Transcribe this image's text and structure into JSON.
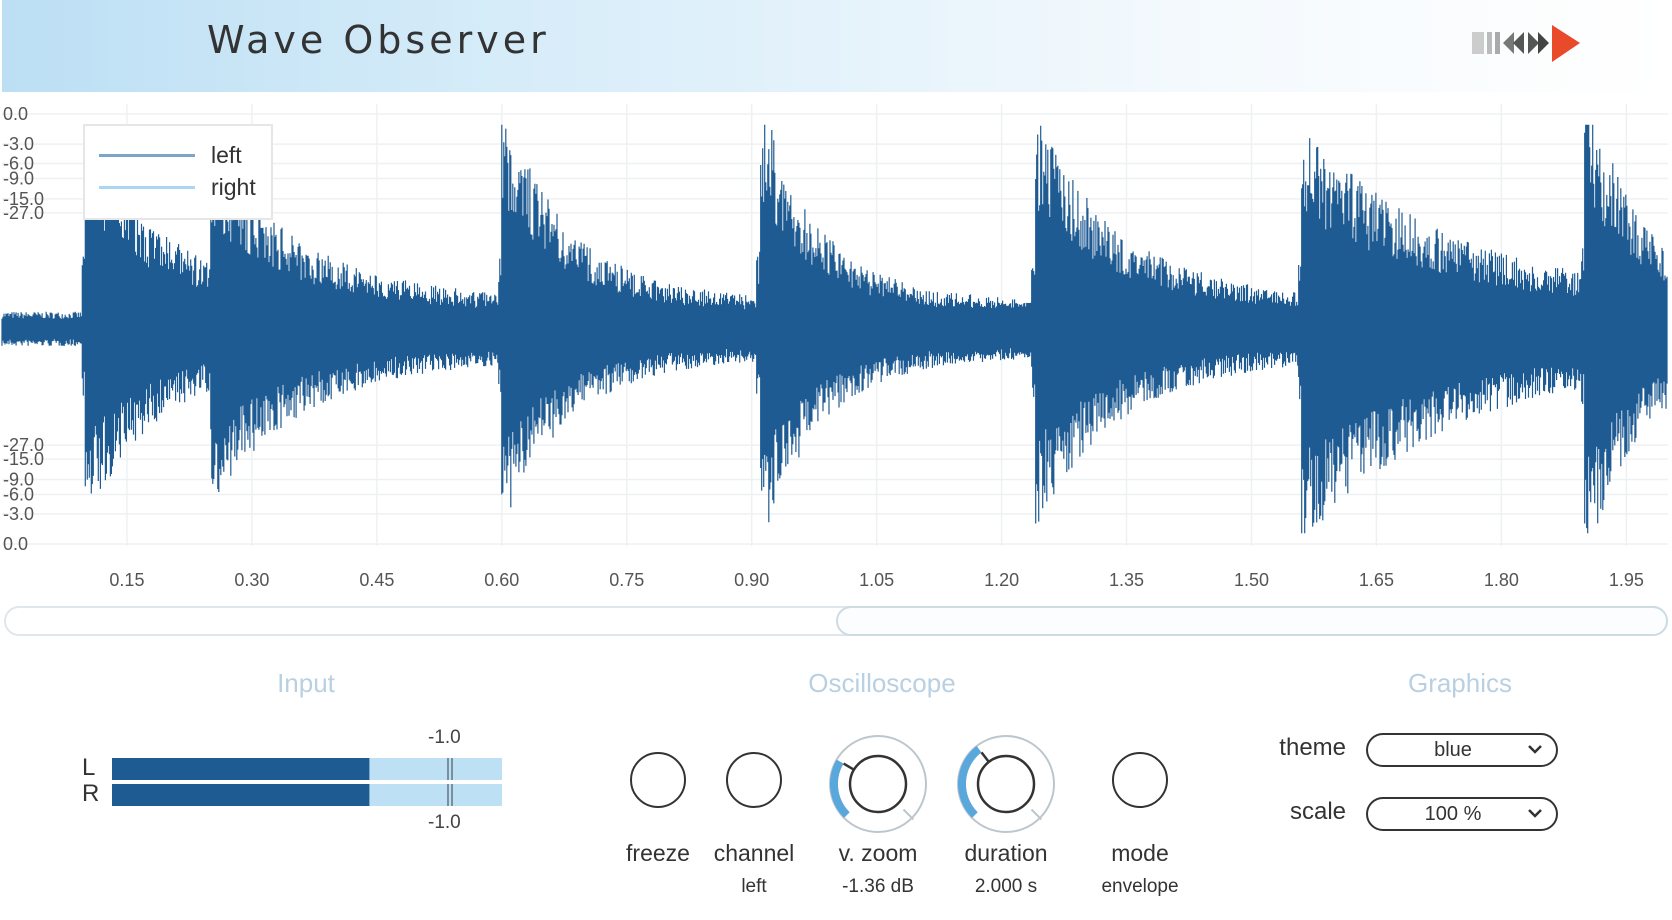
{
  "app": {
    "title": "Wave Observer"
  },
  "scope": {
    "db_labels": [
      "0.0",
      "-3.0",
      "-6.0",
      "-9.0",
      "-15.0",
      "-27.0",
      "-27.0",
      "-15.0",
      "-9.0",
      "-6.0",
      "-3.0",
      "0.0"
    ],
    "time_labels": [
      "0.15",
      "0.30",
      "0.45",
      "0.60",
      "0.75",
      "0.90",
      "1.05",
      "1.20",
      "1.35",
      "1.50",
      "1.65",
      "1.80",
      "1.95"
    ],
    "legend": [
      {
        "label": "left",
        "color": "#7da4c9"
      },
      {
        "label": "right",
        "color": "#a9d6f2"
      }
    ],
    "wave_color": "#1f5b93",
    "duration_s": 2.0,
    "events": [
      {
        "t": 0.1,
        "peak_top": -4.8,
        "peak_bottom": -7.0,
        "decay": 0.08
      },
      {
        "t": 0.25,
        "peak_top": -8.0,
        "peak_bottom": -8.5,
        "decay": 0.1
      },
      {
        "t": 0.6,
        "peak_top": -3.8,
        "peak_bottom": -6.2,
        "decay": 0.07
      },
      {
        "t": 0.91,
        "peak_top": -3.3,
        "peak_bottom": -4.2,
        "decay": 0.06
      },
      {
        "t": 1.24,
        "peak_top": -5.0,
        "peak_bottom": -6.3,
        "decay": 0.09
      },
      {
        "t": 1.56,
        "peak_top": -6.0,
        "peak_bottom": -4.8,
        "decay": 0.16
      },
      {
        "t": 1.9,
        "peak_top": -2.5,
        "peak_bottom": -3.0,
        "decay": 0.06
      }
    ]
  },
  "input": {
    "title": "Input",
    "channels": [
      "L",
      "R"
    ],
    "scale_top": "-1.0",
    "scale_bottom": "-1.0",
    "level_fraction": 0.66,
    "colors": {
      "level": "#1f5b93",
      "track": "#bde0f4"
    }
  },
  "oscilloscope": {
    "title": "Oscilloscope",
    "controls": [
      {
        "label": "freeze",
        "value": ""
      },
      {
        "label": "channel",
        "value": "left"
      },
      {
        "label": "v. zoom",
        "value": "-1.36 dB",
        "arc": 0.28
      },
      {
        "label": "duration",
        "value": "2.000 s",
        "arc": 0.36
      },
      {
        "label": "mode",
        "value": "envelope"
      }
    ],
    "arc_color": "#5aa7dc"
  },
  "graphics": {
    "title": "Graphics",
    "theme_label": "theme",
    "theme_value": "blue",
    "scale_label": "scale",
    "scale_value": "100 %"
  }
}
